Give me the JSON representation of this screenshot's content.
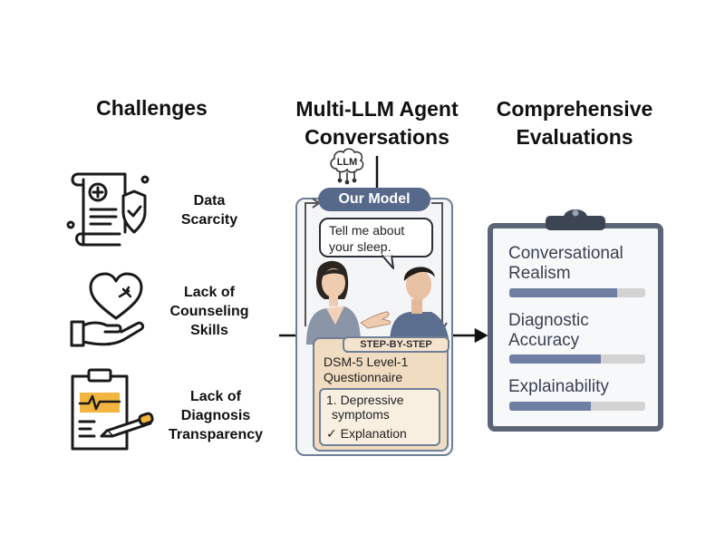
{
  "headings": {
    "challenges": "Challenges",
    "conversations_line1": "Multi-LLM Agent",
    "conversations_line2": "Conversations",
    "evaluations_line1": "Comprehensive",
    "evaluations_line2": "Evaluations"
  },
  "challenges": [
    {
      "line1": "Data",
      "line2": "Scarcity",
      "icon": "document-shield-icon"
    },
    {
      "line1": "Lack of",
      "line2": "Counseling",
      "line3": "Skills",
      "icon": "heart-hand-icon"
    },
    {
      "line1": "Lack of",
      "line2": "Diagnosis",
      "line3": "Transparency",
      "icon": "clipboard-pen-icon"
    }
  ],
  "center": {
    "llm_label": "LLM",
    "model_label": "Our Model",
    "speech_line1": "Tell me about",
    "speech_line2": "your sleep.",
    "step_label": "STEP-BY-STEP",
    "questionnaire_line1": "DSM-5 Level-1",
    "questionnaire_line2": "Questionnaire",
    "item_line1": "1. Depressive",
    "item_line2": "symptoms",
    "check_glyph": "✓",
    "explanation": "Explanation"
  },
  "evaluations": [
    {
      "line1": "Conversational",
      "line2": "Realism",
      "score": 0.79
    },
    {
      "line1": "Diagnostic",
      "line2": "Accuracy",
      "score": 0.67
    },
    {
      "line1": "Explainability",
      "score": 0.6
    }
  ],
  "colors": {
    "slate": "#56698a",
    "bar_fill": "#6e7fa3",
    "bar_track": "#d3d3d3",
    "accent_orange": "#f2b53f",
    "note_bg": "#f0dcc0"
  }
}
